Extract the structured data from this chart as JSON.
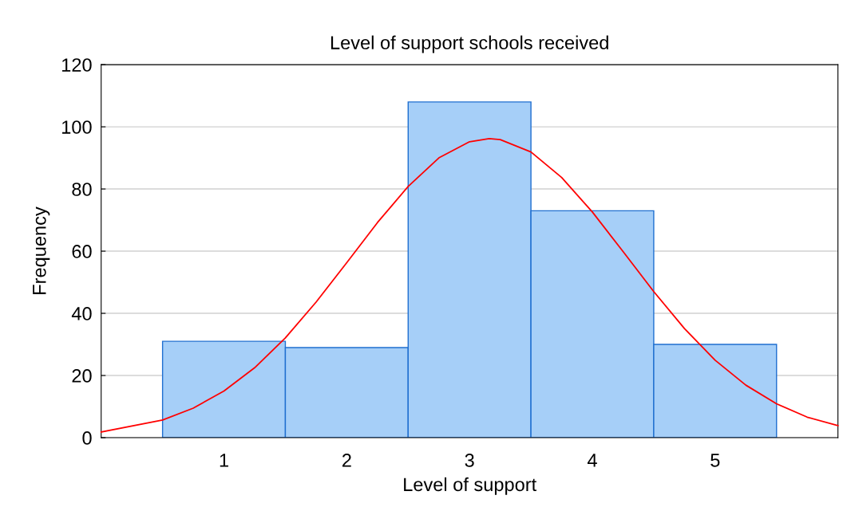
{
  "chart_data": {
    "type": "histogram",
    "title": "Level of support schools received",
    "xlabel": "Level of support",
    "ylabel": "Frequency",
    "bins": [
      0.5,
      1.5,
      2.5,
      3.5,
      4.5,
      5.5
    ],
    "values": [
      31,
      29,
      108,
      73,
      30
    ],
    "color": "#a6cff8",
    "series": [
      {
        "type": "line",
        "color": "#ff0000",
        "x": [
          0,
          0.5,
          0.75,
          1,
          1.25,
          1.5,
          1.75,
          2,
          2.25,
          2.5,
          2.75,
          3,
          3.16,
          3.25,
          3.5,
          3.75,
          4,
          4.25,
          4.5,
          4.75,
          5,
          5.25,
          5.5,
          5.75,
          6
        ],
        "values": [
          1.8,
          5.7,
          9.5,
          15.0,
          22.5,
          32.1,
          43.6,
          56.3,
          69.2,
          80.8,
          90.0,
          95.2,
          96.2,
          95.9,
          91.9,
          83.7,
          72.6,
          59.9,
          47.0,
          35.1,
          24.9,
          16.9,
          10.9,
          6.6,
          3.9
        ]
      }
    ],
    "xlim": [
      0,
      6
    ],
    "xticks": [
      1,
      2,
      3,
      4,
      5
    ],
    "ylim": [
      0,
      120
    ],
    "yticks": [
      0,
      20,
      40,
      60,
      80,
      100,
      120
    ],
    "grid": "y"
  }
}
